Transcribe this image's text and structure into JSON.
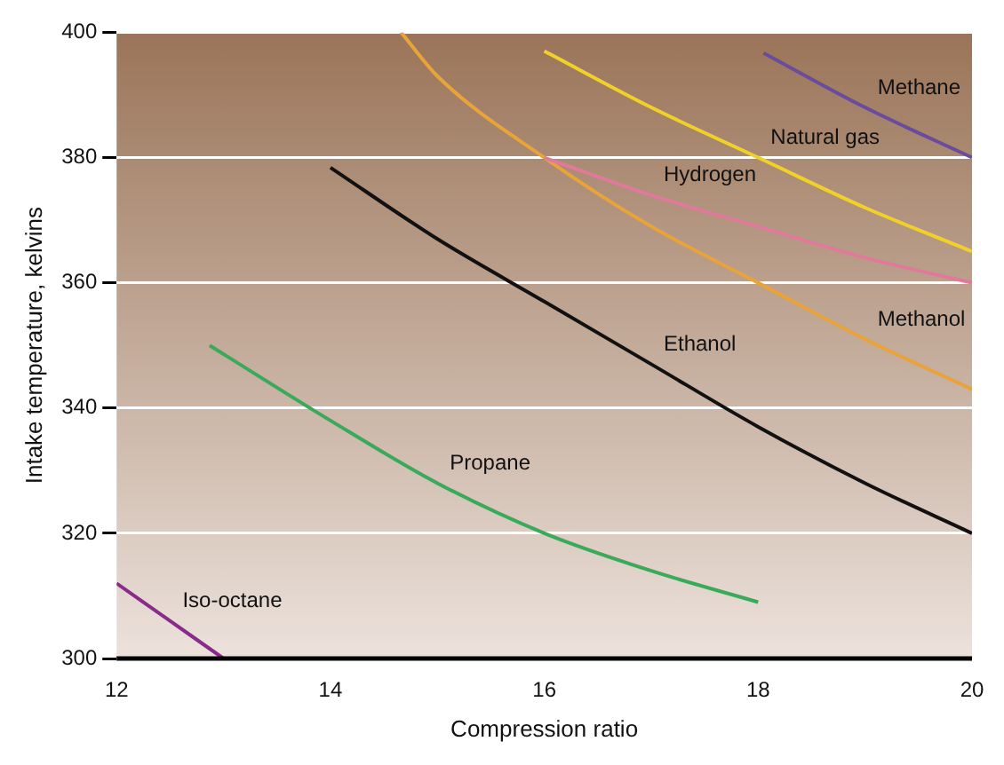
{
  "chart_data": {
    "type": "line",
    "xlabel": "Compression ratio",
    "ylabel": "Intake temperature, kelvins",
    "xlim": [
      12,
      20
    ],
    "xticks": [
      12,
      14,
      16,
      18,
      20
    ],
    "ylim": [
      300,
      400
    ],
    "yticks": [
      300,
      320,
      340,
      360,
      380,
      400
    ],
    "grid": "y",
    "legend": false,
    "marker": "none",
    "line_style": "solid",
    "series": [
      {
        "color": "#6a4c9c",
        "x": [
          18.05,
          19,
          20
        ],
        "values": [
          396.7,
          388,
          380
        ]
      },
      {
        "color": "#f2d02a",
        "x": [
          16,
          17,
          18,
          19,
          20
        ],
        "values": [
          397,
          388,
          380,
          372,
          365
        ]
      },
      {
        "color": "#e07a9a",
        "x": [
          16,
          17,
          18,
          19,
          20
        ],
        "values": [
          380,
          374,
          369,
          364,
          360
        ]
      },
      {
        "color": "#e8a33a",
        "x": [
          14.66,
          15,
          16,
          17,
          18,
          19,
          20
        ],
        "values": [
          400,
          393,
          380,
          369,
          360,
          351,
          343
        ]
      },
      {
        "color": "#111111",
        "x": [
          14,
          15,
          16,
          17,
          18,
          19,
          20
        ],
        "values": [
          378.4,
          367,
          357,
          347,
          337,
          328,
          320
        ]
      },
      {
        "color": "#3aaa5a",
        "x": [
          12.87,
          14,
          15,
          16,
          17,
          18
        ],
        "values": [
          350,
          338,
          328,
          320,
          314,
          309
        ]
      },
      {
        "color": "#8a2a8a",
        "x": [
          12,
          12.5,
          13
        ],
        "values": [
          312,
          306,
          300
        ]
      }
    ],
    "annotations": [
      {
        "text": "Methane",
        "x": 19,
        "y": 388
      },
      {
        "text": "Natural gas",
        "x": 18,
        "y": 380
      },
      {
        "text": "Hydrogen",
        "x": 17,
        "y": 374
      },
      {
        "text": "Methanol",
        "x": 19,
        "y": 351
      },
      {
        "text": "Ethanol",
        "x": 17,
        "y": 347
      },
      {
        "text": "Propane",
        "x": 15,
        "y": 328
      },
      {
        "text": "Iso-octane",
        "x": 12.5,
        "y": 306
      }
    ]
  }
}
